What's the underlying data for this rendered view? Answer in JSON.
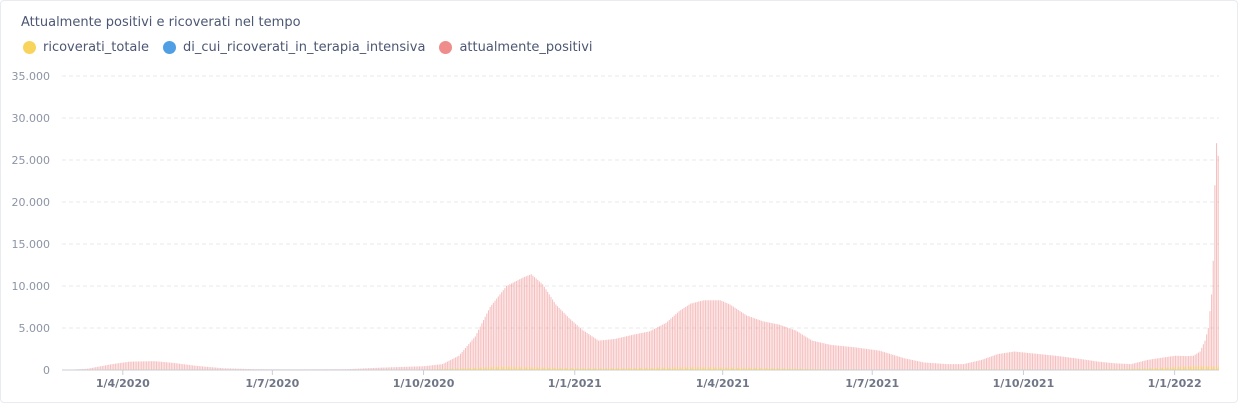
{
  "chart_data": {
    "type": "bar",
    "title": "Attualmente positivi e ricoverati nel tempo",
    "xlabel": "",
    "ylabel": "",
    "x_range": [
      "2020-02-24",
      "2022-01-27"
    ],
    "ylim": [
      0,
      35000
    ],
    "y_ticks": [
      {
        "value": 0,
        "label": "0"
      },
      {
        "value": 5000,
        "label": "5.000"
      },
      {
        "value": 10000,
        "label": "10.000"
      },
      {
        "value": 15000,
        "label": "15.000"
      },
      {
        "value": 20000,
        "label": "20.000"
      },
      {
        "value": 25000,
        "label": "25.000"
      },
      {
        "value": 30000,
        "label": "30.000"
      },
      {
        "value": 35000,
        "label": "35.000"
      }
    ],
    "x_ticks": [
      {
        "date": "2020-04-01",
        "label": "1/4/2020"
      },
      {
        "date": "2020-07-01",
        "label": "1/7/2020"
      },
      {
        "date": "2020-10-01",
        "label": "1/10/2020"
      },
      {
        "date": "2021-01-01",
        "label": "1/1/2021"
      },
      {
        "date": "2021-04-01",
        "label": "1/4/2021"
      },
      {
        "date": "2021-07-01",
        "label": "1/7/2021"
      },
      {
        "date": "2021-10-01",
        "label": "1/10/2021"
      },
      {
        "date": "2022-01-01",
        "label": "1/1/2022"
      }
    ],
    "grid": "horizontal dashed",
    "legend_position": "top-left",
    "series": [
      {
        "name": "ricoverati_totale",
        "color": "#f9d45c",
        "points": [
          [
            "2020-02-24",
            5
          ],
          [
            "2020-03-25",
            70
          ],
          [
            "2020-04-20",
            80
          ],
          [
            "2020-05-20",
            30
          ],
          [
            "2020-06-20",
            10
          ],
          [
            "2020-08-01",
            5
          ],
          [
            "2020-10-01",
            60
          ],
          [
            "2020-11-15",
            350
          ],
          [
            "2020-12-20",
            250
          ],
          [
            "2021-01-15",
            200
          ],
          [
            "2021-03-15",
            300
          ],
          [
            "2021-04-20",
            250
          ],
          [
            "2021-06-01",
            100
          ],
          [
            "2021-07-15",
            30
          ],
          [
            "2021-09-01",
            100
          ],
          [
            "2021-10-20",
            60
          ],
          [
            "2021-12-01",
            120
          ],
          [
            "2022-01-15",
            400
          ],
          [
            "2022-01-27",
            350
          ]
        ]
      },
      {
        "name": "di_cui_ricoverati_in_terapia_intensiva",
        "color": "#509ee3",
        "points": [
          [
            "2020-02-24",
            1
          ],
          [
            "2020-04-01",
            20
          ],
          [
            "2020-06-01",
            5
          ],
          [
            "2020-10-01",
            5
          ],
          [
            "2020-11-20",
            40
          ],
          [
            "2021-01-10",
            30
          ],
          [
            "2021-03-20",
            40
          ],
          [
            "2021-05-01",
            30
          ],
          [
            "2021-07-15",
            5
          ],
          [
            "2021-09-01",
            15
          ],
          [
            "2021-10-20",
            5
          ],
          [
            "2022-01-10",
            40
          ],
          [
            "2022-01-27",
            35
          ]
        ]
      },
      {
        "name": "attualmente_positivi",
        "color": "#ef8c8c",
        "points": [
          [
            "2020-02-24",
            0
          ],
          [
            "2020-03-10",
            150
          ],
          [
            "2020-03-25",
            700
          ],
          [
            "2020-04-05",
            1000
          ],
          [
            "2020-04-20",
            1050
          ],
          [
            "2020-05-01",
            850
          ],
          [
            "2020-05-15",
            500
          ],
          [
            "2020-06-01",
            200
          ],
          [
            "2020-06-20",
            100
          ],
          [
            "2020-07-15",
            80
          ],
          [
            "2020-08-15",
            100
          ],
          [
            "2020-09-01",
            250
          ],
          [
            "2020-09-15",
            350
          ],
          [
            "2020-10-01",
            450
          ],
          [
            "2020-10-12",
            700
          ],
          [
            "2020-10-22",
            1700
          ],
          [
            "2020-11-01",
            4000
          ],
          [
            "2020-11-10",
            7500
          ],
          [
            "2020-11-20",
            10000
          ],
          [
            "2020-11-30",
            11000
          ],
          [
            "2020-12-05",
            11400
          ],
          [
            "2020-12-12",
            10200
          ],
          [
            "2020-12-20",
            7800
          ],
          [
            "2020-12-28",
            6200
          ],
          [
            "2021-01-05",
            4800
          ],
          [
            "2021-01-15",
            3500
          ],
          [
            "2021-01-25",
            3700
          ],
          [
            "2021-02-05",
            4200
          ],
          [
            "2021-02-15",
            4600
          ],
          [
            "2021-02-25",
            5600
          ],
          [
            "2021-03-05",
            7000
          ],
          [
            "2021-03-12",
            7900
          ],
          [
            "2021-03-20",
            8300
          ],
          [
            "2021-03-30",
            8300
          ],
          [
            "2021-04-05",
            7800
          ],
          [
            "2021-04-15",
            6500
          ],
          [
            "2021-04-25",
            5800
          ],
          [
            "2021-05-05",
            5400
          ],
          [
            "2021-05-15",
            4700
          ],
          [
            "2021-05-25",
            3500
          ],
          [
            "2021-06-05",
            3000
          ],
          [
            "2021-06-20",
            2700
          ],
          [
            "2021-07-05",
            2300
          ],
          [
            "2021-07-20",
            1400
          ],
          [
            "2021-08-01",
            900
          ],
          [
            "2021-08-15",
            700
          ],
          [
            "2021-08-25",
            700
          ],
          [
            "2021-09-05",
            1200
          ],
          [
            "2021-09-15",
            1900
          ],
          [
            "2021-09-25",
            2200
          ],
          [
            "2021-10-05",
            2000
          ],
          [
            "2021-10-20",
            1700
          ],
          [
            "2021-11-01",
            1400
          ],
          [
            "2021-11-15",
            1000
          ],
          [
            "2021-11-25",
            800
          ],
          [
            "2021-12-05",
            700
          ],
          [
            "2021-12-15",
            1200
          ],
          [
            "2021-12-25",
            1500
          ],
          [
            "2022-01-01",
            1700
          ],
          [
            "2022-01-08",
            1650
          ],
          [
            "2022-01-12",
            1700
          ],
          [
            "2022-01-16",
            2200
          ],
          [
            "2022-01-19",
            3500
          ],
          [
            "2022-01-21",
            5000
          ],
          [
            "2022-01-23",
            9000
          ],
          [
            "2022-01-24",
            13000
          ],
          [
            "2022-01-25",
            22000
          ],
          [
            "2022-01-26",
            27000
          ],
          [
            "2022-01-27",
            25500
          ]
        ]
      }
    ]
  }
}
